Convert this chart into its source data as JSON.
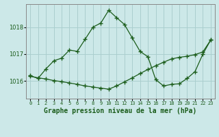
{
  "title": "Graphe pression niveau de la mer (hPa)",
  "background_color": "#cce8e8",
  "plot_bg_color": "#cce8e8",
  "grid_color": "#aacfcf",
  "line_color": "#1a5c1a",
  "x_labels": [
    "0",
    "1",
    "2",
    "3",
    "4",
    "5",
    "6",
    "7",
    "8",
    "9",
    "10",
    "11",
    "12",
    "13",
    "14",
    "15",
    "16",
    "17",
    "18",
    "19",
    "20",
    "21",
    "22",
    "23"
  ],
  "ylim": [
    1015.35,
    1018.85
  ],
  "yticks": [
    1016,
    1017,
    1018
  ],
  "series1": [
    1016.2,
    1016.1,
    1016.45,
    1016.75,
    1016.85,
    1017.15,
    1017.1,
    1017.55,
    1018.0,
    1018.15,
    1018.62,
    1018.35,
    1018.1,
    1017.6,
    1017.1,
    1016.9,
    1016.05,
    1015.82,
    1015.88,
    1015.9,
    1016.1,
    1016.35,
    1017.0,
    1017.52
  ],
  "series2": [
    1016.18,
    1016.12,
    1016.08,
    1016.02,
    1015.98,
    1015.93,
    1015.88,
    1015.82,
    1015.78,
    1015.74,
    1015.7,
    1015.82,
    1015.97,
    1016.12,
    1016.28,
    1016.43,
    1016.57,
    1016.7,
    1016.82,
    1016.88,
    1016.92,
    1016.98,
    1017.08,
    1017.52
  ],
  "marker_size": 4,
  "line_width": 0.9,
  "xlabel_fontsize": 7,
  "ytick_fontsize": 6,
  "xtick_fontsize": 5
}
